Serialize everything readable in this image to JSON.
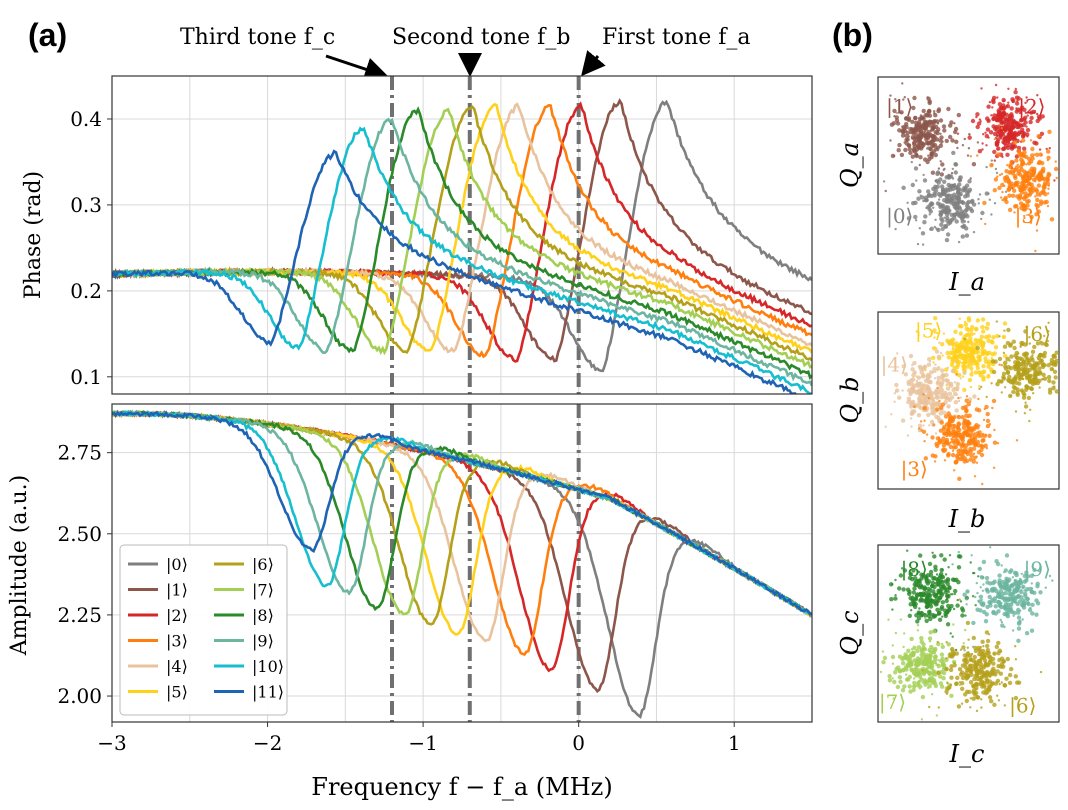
{
  "panel_labels": {
    "a": "(a)",
    "b": "(b)"
  },
  "annotations": [
    {
      "text": "Third tone f_c",
      "target_x": -1.2
    },
    {
      "text": "Second tone f_b",
      "target_x": -0.7
    },
    {
      "text": "First tone f_a",
      "target_x": 0
    }
  ],
  "colors": {
    "0": "#7f7f7f",
    "1": "#8c564b",
    "2": "#d62728",
    "3": "#ff7f0e",
    "4": "#e8c39e",
    "5": "#ffd11a",
    "6": "#b5a01a",
    "7": "#a4cf55",
    "8": "#2a8a2a",
    "9": "#6cb5a0",
    "10": "#17becf",
    "11": "#1f63b4"
  },
  "chart_data": [
    {
      "type": "line",
      "panel": "(a) top",
      "ylabel": "Phase (rad)",
      "xlim": [
        -3,
        1.5
      ],
      "ylim": [
        0.08,
        0.45
      ],
      "xticks": [
        -3,
        -2,
        -1,
        0,
        1
      ],
      "yticks": [
        0.1,
        0.2,
        0.3,
        0.4
      ],
      "ytick_labels": [
        "0.1",
        "0.2",
        "0.3",
        "0.4"
      ],
      "vlines": [
        -1.2,
        -0.7,
        0
      ],
      "grid": true,
      "series": [
        {
          "name": "|0⟩",
          "dip_x": 0.15,
          "dip_y": 0.108,
          "peak_y": 0.42
        },
        {
          "name": "|1⟩",
          "dip_x": -0.15,
          "dip_y": 0.12,
          "peak_y": 0.42
        },
        {
          "name": "|2⟩",
          "dip_x": -0.4,
          "dip_y": 0.12,
          "peak_y": 0.415
        },
        {
          "name": "|3⟩",
          "dip_x": -0.6,
          "dip_y": 0.125,
          "peak_y": 0.415
        },
        {
          "name": "|4⟩",
          "dip_x": -0.8,
          "dip_y": 0.13,
          "peak_y": 0.415
        },
        {
          "name": "|5⟩",
          "dip_x": -0.95,
          "dip_y": 0.13,
          "peak_y": 0.415
        },
        {
          "name": "|6⟩",
          "dip_x": -1.1,
          "dip_y": 0.13,
          "peak_y": 0.415
        },
        {
          "name": "|7⟩",
          "dip_x": -1.25,
          "dip_y": 0.13,
          "peak_y": 0.41
        },
        {
          "name": "|8⟩",
          "dip_x": -1.45,
          "dip_y": 0.13,
          "peak_y": 0.41
        },
        {
          "name": "|9⟩",
          "dip_x": -1.62,
          "dip_y": 0.13,
          "peak_y": 0.4
        },
        {
          "name": "|10⟩",
          "dip_x": -1.8,
          "dip_y": 0.135,
          "peak_y": 0.39
        },
        {
          "name": "|11⟩",
          "dip_x": -1.98,
          "dip_y": 0.14,
          "peak_y": 0.36
        }
      ]
    },
    {
      "type": "line",
      "panel": "(a) bottom",
      "xlabel": "Frequency f − f_a (MHz)",
      "ylabel": "Amplitude (a.u.)",
      "xlim": [
        -3,
        1.5
      ],
      "ylim": [
        1.92,
        2.9
      ],
      "xticks": [
        -3,
        -2,
        -1,
        0,
        1
      ],
      "xtick_labels": [
        "−3",
        "−2",
        "−1",
        "0",
        "1"
      ],
      "yticks": [
        2.0,
        2.25,
        2.5,
        2.75
      ],
      "ytick_labels": [
        "2.00",
        "2.25",
        "2.50",
        "2.75"
      ],
      "vlines": [
        -1.2,
        -0.7,
        0
      ],
      "grid": true,
      "legend": "lower-left",
      "series": [
        {
          "name": "|0⟩",
          "dip_x": 0.38,
          "dip_y": 1.94
        },
        {
          "name": "|1⟩",
          "dip_x": 0.12,
          "dip_y": 2.02
        },
        {
          "name": "|2⟩",
          "dip_x": -0.18,
          "dip_y": 2.08
        },
        {
          "name": "|3⟩",
          "dip_x": -0.35,
          "dip_y": 2.13
        },
        {
          "name": "|4⟩",
          "dip_x": -0.6,
          "dip_y": 2.17
        },
        {
          "name": "|5⟩",
          "dip_x": -0.78,
          "dip_y": 2.19
        },
        {
          "name": "|6⟩",
          "dip_x": -0.95,
          "dip_y": 2.22
        },
        {
          "name": "|7⟩",
          "dip_x": -1.12,
          "dip_y": 2.25
        },
        {
          "name": "|8⟩",
          "dip_x": -1.3,
          "dip_y": 2.27
        },
        {
          "name": "|9⟩",
          "dip_x": -1.48,
          "dip_y": 2.32
        },
        {
          "name": "|10⟩",
          "dip_x": -1.62,
          "dip_y": 2.34
        },
        {
          "name": "|11⟩",
          "dip_x": -1.72,
          "dip_y": 2.45
        }
      ]
    },
    {
      "type": "scatter",
      "panel": "(b) top",
      "xlabel": "I_a",
      "ylabel": "Q_a",
      "clusters": [
        {
          "name": "|1⟩",
          "state": "1",
          "cx": 0.25,
          "cy": 0.68
        },
        {
          "name": "|2⟩",
          "state": "2",
          "cx": 0.72,
          "cy": 0.72
        },
        {
          "name": "|3⟩",
          "state": "3",
          "cx": 0.82,
          "cy": 0.42
        },
        {
          "name": "|0⟩",
          "state": "0",
          "cx": 0.4,
          "cy": 0.3
        }
      ]
    },
    {
      "type": "scatter",
      "panel": "(b) middle",
      "xlabel": "I_b",
      "ylabel": "Q_b",
      "clusters": [
        {
          "name": "|5⟩",
          "state": "5",
          "cx": 0.5,
          "cy": 0.77
        },
        {
          "name": "|6⟩",
          "state": "6",
          "cx": 0.83,
          "cy": 0.68
        },
        {
          "name": "|4⟩",
          "state": "4",
          "cx": 0.28,
          "cy": 0.55
        },
        {
          "name": "|3⟩",
          "state": "3",
          "cx": 0.46,
          "cy": 0.3
        }
      ]
    },
    {
      "type": "scatter",
      "panel": "(b) bottom",
      "xlabel": "I_c",
      "ylabel": "Q_c",
      "clusters": [
        {
          "name": "|8⟩",
          "state": "8",
          "cx": 0.3,
          "cy": 0.72
        },
        {
          "name": "|9⟩",
          "state": "9",
          "cx": 0.72,
          "cy": 0.72
        },
        {
          "name": "|7⟩",
          "state": "7",
          "cx": 0.25,
          "cy": 0.32
        },
        {
          "name": "|6⟩",
          "state": "6",
          "cx": 0.55,
          "cy": 0.28
        }
      ]
    }
  ]
}
